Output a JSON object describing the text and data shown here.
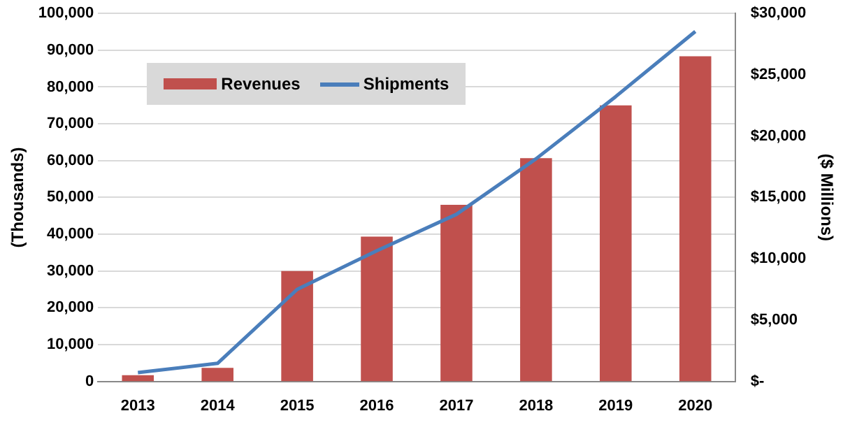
{
  "chart_data": {
    "type": "bar",
    "ylabel": "(Thousands)",
    "y2label": "($ Millions)",
    "categories": [
      "2013",
      "2014",
      "2015",
      "2016",
      "2017",
      "2018",
      "2019",
      "2020"
    ],
    "series": [
      {
        "name": "Revenues",
        "axis": "y2",
        "color": "#c0504d",
        "values": [
          500,
          1100,
          9000,
          11800,
          14400,
          18200,
          22500,
          26500
        ]
      },
      {
        "name": "Shipments",
        "type": "line",
        "axis": "y",
        "color": "#4a7ebb",
        "values": [
          2400,
          4900,
          25000,
          35500,
          45400,
          60500,
          77400,
          95100
        ]
      }
    ],
    "ylim": [
      0,
      100000
    ],
    "yticks": [
      {
        "value": 0,
        "label": "0"
      },
      {
        "value": 10000,
        "label": "10,000"
      },
      {
        "value": 20000,
        "label": "20,000"
      },
      {
        "value": 30000,
        "label": "30,000"
      },
      {
        "value": 40000,
        "label": "40,000"
      },
      {
        "value": 50000,
        "label": "50,000"
      },
      {
        "value": 60000,
        "label": "60,000"
      },
      {
        "value": 70000,
        "label": "70,000"
      },
      {
        "value": 80000,
        "label": "80,000"
      },
      {
        "value": 90000,
        "label": "90,000"
      },
      {
        "value": 100000,
        "label": "100,000"
      }
    ],
    "y2lim": [
      0,
      30000
    ],
    "y2ticks": [
      {
        "value": 0,
        "label": "$-"
      },
      {
        "value": 5000,
        "label": "$5,000"
      },
      {
        "value": 10000,
        "label": "$10,000"
      },
      {
        "value": 15000,
        "label": "$15,000"
      },
      {
        "value": 20000,
        "label": "$20,000"
      },
      {
        "value": 25000,
        "label": "$25,000"
      },
      {
        "value": 30000,
        "label": "$30,000"
      }
    ],
    "grid": "y",
    "legend": "top left",
    "marker": "none",
    "line_style": "solid"
  }
}
